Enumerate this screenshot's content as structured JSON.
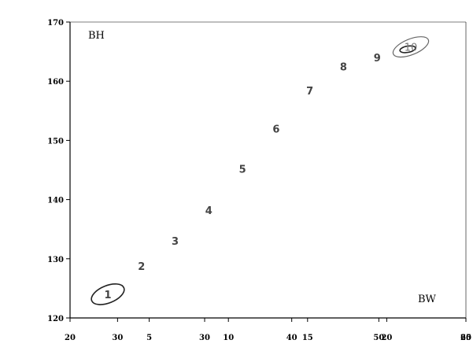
{
  "chart_data": {
    "type": "scatter",
    "xlabel": "BW",
    "ylabel": "BH",
    "ylim": [
      120,
      170
    ],
    "y_ticks": [
      120,
      130,
      140,
      150,
      160,
      170
    ],
    "grid": false,
    "x_tick_groups": [
      [
        "20",
        "5",
        "10",
        "15",
        "20",
        "25"
      ],
      [
        "30",
        "30",
        "40",
        "50",
        "60"
      ]
    ],
    "points": [
      {
        "label": "1",
        "y": 124.0,
        "ellipse": true
      },
      {
        "label": "2",
        "y": 128.8
      },
      {
        "label": "3",
        "y": 133.0
      },
      {
        "label": "4",
        "y": 138.2
      },
      {
        "label": "5",
        "y": 145.2
      },
      {
        "label": "6",
        "y": 152.0
      },
      {
        "label": "7",
        "y": 158.4
      },
      {
        "label": "8",
        "y": 162.5
      },
      {
        "label": "9",
        "y": 164.0
      },
      {
        "label": "10",
        "y": 165.8,
        "ellipse": true
      }
    ]
  }
}
